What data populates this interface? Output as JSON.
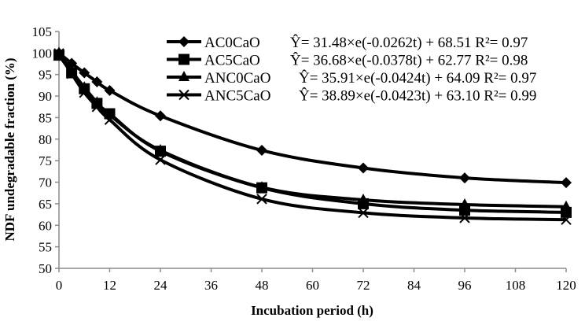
{
  "chart_data": {
    "type": "line",
    "title": "",
    "xlabel": "Incubation period (h)",
    "ylabel": "NDF undegradable fraction (%)",
    "xlim": [
      0,
      120
    ],
    "ylim": [
      50,
      105
    ],
    "x_ticks": [
      "0",
      "12",
      "24",
      "36",
      "48",
      "60",
      "72",
      "84",
      "96",
      "108",
      "120"
    ],
    "y_ticks": [
      "50",
      "55",
      "60",
      "65",
      "70",
      "75",
      "80",
      "85",
      "90",
      "95",
      "100",
      "105"
    ],
    "grid": false,
    "legend_position": "top-right",
    "x": [
      0,
      3,
      6,
      9,
      12,
      24,
      48,
      72,
      96,
      120
    ],
    "series": [
      {
        "name": "AC0CaO",
        "equation": "Ŷ= 31.48×e(-0.0262t) + 68.51 R²= 0.97",
        "marker": "diamond",
        "values": [
          100.0,
          97.6,
          95.4,
          93.3,
          91.3,
          85.4,
          77.4,
          73.3,
          71.0,
          69.9
        ]
      },
      {
        "name": "AC5CaO",
        "equation": "Ŷ= 36.68×e(-0.0378t) + 62.77 R²= 0.98",
        "marker": "square",
        "values": [
          99.5,
          95.4,
          91.7,
          88.3,
          85.9,
          77.2,
          68.7,
          65.0,
          63.5,
          63.0
        ]
      },
      {
        "name": "ANC0CaO",
        "equation": "Ŷ= 35.91×e(-0.0424t) + 64.09 R²= 0.97",
        "marker": "triangle",
        "values": [
          100.0,
          95.8,
          92.0,
          88.5,
          85.6,
          77.4,
          68.8,
          65.9,
          64.8,
          64.3
        ]
      },
      {
        "name": "ANC5CaO",
        "equation": "Ŷ= 38.89×e(-0.0423t) + 63.10 R²= 0.99",
        "marker": "x",
        "values": [
          99.9,
          95.2,
          90.8,
          87.5,
          84.5,
          75.2,
          66.1,
          62.9,
          61.7,
          61.3
        ]
      }
    ]
  }
}
